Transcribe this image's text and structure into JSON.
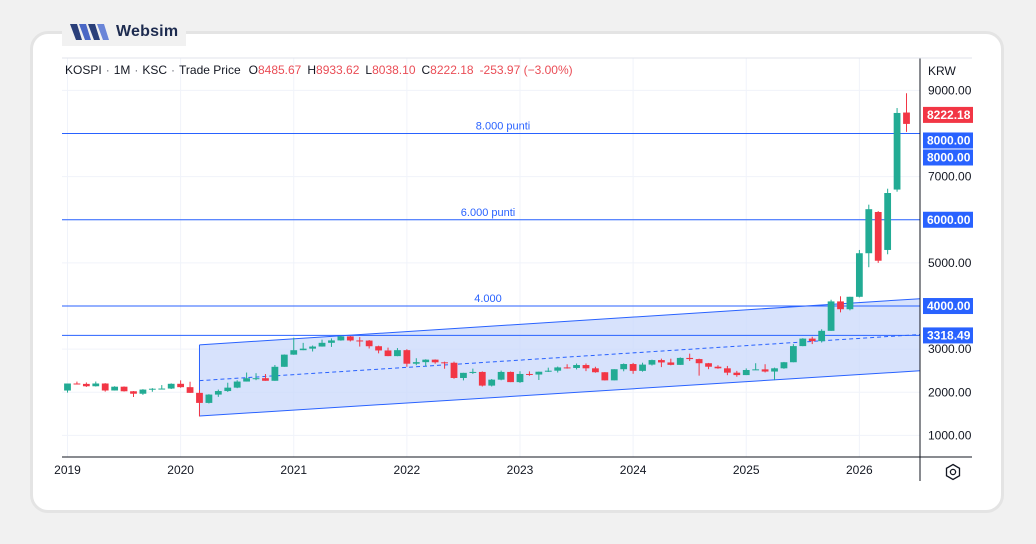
{
  "brand": {
    "name": "Websim"
  },
  "legend": {
    "symbol": "KOSPI",
    "interval": "1M",
    "exchange": "KSC",
    "price_type": "Trade Price",
    "open_key": "O",
    "open": "8485.67",
    "high_key": "H",
    "high": "8933.62",
    "low_key": "L",
    "low": "8038.10",
    "close_key": "C",
    "close": "8222.18",
    "change": "-253.97 (−3.00%)"
  },
  "currency": "KRW",
  "colors": {
    "up": "#22ab94",
    "down": "#f23645",
    "line": "#2962ff",
    "channel_fill": "#c9d8fb",
    "last": "#f23645"
  },
  "chart_data": {
    "type": "candlestick",
    "interval": "1M",
    "x_tick_labels": [
      "2019",
      "2020",
      "2021",
      "2022",
      "2023",
      "2024",
      "2025",
      "2026"
    ],
    "y_tick_labels": [
      "1000.00",
      "2000.00",
      "3000.00",
      "4000.00",
      "5000.00",
      "6000.00",
      "7000.00",
      "9000.00"
    ],
    "ylim": [
      500,
      9750
    ],
    "y_axis_side": "right",
    "grid": true,
    "last_price": "8222.18",
    "horizontal_lines": [
      {
        "value": 8000,
        "label": "8.000 punti",
        "tag": "8000.00"
      },
      {
        "value": 6000,
        "label": "6.000 punti",
        "tag": "6000.00"
      },
      {
        "value": 4000,
        "label": "4.000",
        "tag": "4000.00"
      },
      {
        "value": 3318.49,
        "label": "",
        "tag": "3318.49"
      }
    ],
    "extra_tags": [
      "8000.00"
    ],
    "channel": {
      "start": "2020-03",
      "end": "2026-06",
      "upper": [
        3100,
        4150
      ],
      "middle": [
        2270,
        3320
      ],
      "lower": [
        1450,
        2480
      ]
    },
    "candles": [
      [
        "2019-01",
        2041,
        2204,
        1993,
        2204
      ],
      [
        "2019-02",
        2204,
        2248,
        2180,
        2195
      ],
      [
        "2019-03",
        2195,
        2228,
        2124,
        2140
      ],
      [
        "2019-04",
        2140,
        2249,
        2133,
        2204
      ],
      [
        "2019-05",
        2204,
        2212,
        2016,
        2042
      ],
      [
        "2019-06",
        2042,
        2141,
        2040,
        2130
      ],
      [
        "2019-07",
        2130,
        2137,
        2017,
        2024
      ],
      [
        "2019-08",
        2024,
        2029,
        1891,
        1967
      ],
      [
        "2019-09",
        1967,
        2073,
        1940,
        2063
      ],
      [
        "2019-10",
        2063,
        2097,
        2012,
        2083
      ],
      [
        "2019-11",
        2083,
        2167,
        2081,
        2087
      ],
      [
        "2019-12",
        2087,
        2207,
        2076,
        2197
      ],
      [
        "2020-01",
        2197,
        2277,
        2105,
        2119
      ],
      [
        "2020-02",
        2119,
        2245,
        1987,
        1987
      ],
      [
        "2020-03",
        1987,
        2055,
        1439,
        1754
      ],
      [
        "2020-04",
        1754,
        1956,
        1741,
        1947
      ],
      [
        "2020-05",
        1947,
        2063,
        1894,
        2029
      ],
      [
        "2020-06",
        2029,
        2222,
        2009,
        2108
      ],
      [
        "2020-07",
        2108,
        2280,
        2096,
        2249
      ],
      [
        "2020-08",
        2249,
        2458,
        2249,
        2326
      ],
      [
        "2020-09",
        2326,
        2443,
        2281,
        2327
      ],
      [
        "2020-10",
        2327,
        2423,
        2267,
        2267
      ],
      [
        "2020-11",
        2267,
        2633,
        2267,
        2591
      ],
      [
        "2020-12",
        2591,
        2878,
        2591,
        2873
      ],
      [
        "2021-01",
        2873,
        3266,
        2869,
        2976
      ],
      [
        "2021-02",
        2976,
        3146,
        2977,
        3012
      ],
      [
        "2021-03",
        3012,
        3085,
        2946,
        3061
      ],
      [
        "2021-04",
        3061,
        3220,
        3058,
        3147
      ],
      [
        "2021-05",
        3147,
        3249,
        3052,
        3203
      ],
      [
        "2021-06",
        3203,
        3316,
        3196,
        3296
      ],
      [
        "2021-07",
        3296,
        3305,
        3179,
        3202
      ],
      [
        "2021-08",
        3202,
        3280,
        3060,
        3199
      ],
      [
        "2021-09",
        3199,
        3212,
        3015,
        3068
      ],
      [
        "2021-10",
        3068,
        3081,
        2903,
        2970
      ],
      [
        "2021-11",
        2970,
        3036,
        2838,
        2839
      ],
      [
        "2021-12",
        2839,
        3025,
        2837,
        2977
      ],
      [
        "2022-01",
        2977,
        2999,
        2591,
        2663
      ],
      [
        "2022-02",
        2663,
        2790,
        2629,
        2699
      ],
      [
        "2022-03",
        2699,
        2766,
        2605,
        2757
      ],
      [
        "2022-04",
        2757,
        2763,
        2663,
        2695
      ],
      [
        "2022-05",
        2695,
        2711,
        2546,
        2685
      ],
      [
        "2022-06",
        2685,
        2711,
        2314,
        2332
      ],
      [
        "2022-07",
        2332,
        2452,
        2276,
        2451
      ],
      [
        "2022-08",
        2451,
        2549,
        2426,
        2472
      ],
      [
        "2022-09",
        2472,
        2485,
        2134,
        2155
      ],
      [
        "2022-10",
        2155,
        2308,
        2134,
        2293
      ],
      [
        "2022-11",
        2293,
        2503,
        2279,
        2472
      ],
      [
        "2022-12",
        2472,
        2481,
        2236,
        2236
      ],
      [
        "2023-01",
        2236,
        2489,
        2218,
        2425
      ],
      [
        "2023-02",
        2425,
        2485,
        2383,
        2412
      ],
      [
        "2023-03",
        2412,
        2480,
        2285,
        2477
      ],
      [
        "2023-04",
        2477,
        2571,
        2471,
        2501
      ],
      [
        "2023-05",
        2501,
        2597,
        2459,
        2577
      ],
      [
        "2023-06",
        2577,
        2650,
        2549,
        2564
      ],
      [
        "2023-07",
        2564,
        2667,
        2530,
        2632
      ],
      [
        "2023-08",
        2632,
        2668,
        2491,
        2556
      ],
      [
        "2023-09",
        2556,
        2592,
        2454,
        2465
      ],
      [
        "2023-10",
        2465,
        2468,
        2273,
        2277
      ],
      [
        "2023-11",
        2277,
        2535,
        2277,
        2535
      ],
      [
        "2023-12",
        2535,
        2669,
        2487,
        2655
      ],
      [
        "2024-01",
        2655,
        2682,
        2429,
        2497
      ],
      [
        "2024-02",
        2497,
        2686,
        2478,
        2642
      ],
      [
        "2024-03",
        2642,
        2757,
        2620,
        2747
      ],
      [
        "2024-04",
        2747,
        2780,
        2584,
        2692
      ],
      [
        "2024-05",
        2692,
        2779,
        2626,
        2636
      ],
      [
        "2024-06",
        2636,
        2809,
        2635,
        2797
      ],
      [
        "2024-07",
        2797,
        2896,
        2727,
        2770
      ],
      [
        "2024-08",
        2770,
        2779,
        2386,
        2674
      ],
      [
        "2024-09",
        2674,
        2681,
        2536,
        2593
      ],
      [
        "2024-10",
        2593,
        2627,
        2546,
        2556
      ],
      [
        "2024-11",
        2556,
        2611,
        2397,
        2455
      ],
      [
        "2024-12",
        2455,
        2497,
        2360,
        2399
      ],
      [
        "2025-01",
        2399,
        2554,
        2399,
        2517
      ],
      [
        "2025-02",
        2517,
        2674,
        2520,
        2532
      ],
      [
        "2025-03",
        2532,
        2651,
        2460,
        2481
      ],
      [
        "2025-04",
        2481,
        2572,
        2284,
        2556
      ],
      [
        "2025-05",
        2556,
        2704,
        2545,
        2697
      ],
      [
        "2025-06",
        2697,
        3116,
        2697,
        3071
      ],
      [
        "2025-07",
        3071,
        3254,
        3069,
        3245
      ],
      [
        "2025-08",
        3245,
        3288,
        3118,
        3186
      ],
      [
        "2025-09",
        3186,
        3461,
        3154,
        3425
      ],
      [
        "2025-10",
        3425,
        4146,
        3425,
        4107
      ],
      [
        "2025-11",
        4107,
        4226,
        3853,
        3926
      ],
      [
        "2025-12",
        3926,
        4214,
        3900,
        4214
      ],
      [
        "2026-01",
        4214,
        5300,
        4200,
        5224
      ],
      [
        "2026-02",
        5224,
        6350,
        4900,
        6245
      ],
      [
        "2026-03",
        6180,
        6200,
        5000,
        5050
      ],
      [
        "2026-04",
        5300,
        6720,
        5200,
        6620
      ],
      [
        "2026-05",
        6700,
        8590,
        6650,
        8476
      ],
      [
        "2026-06",
        8485.67,
        8933.62,
        8038.1,
        8222.18
      ]
    ]
  }
}
